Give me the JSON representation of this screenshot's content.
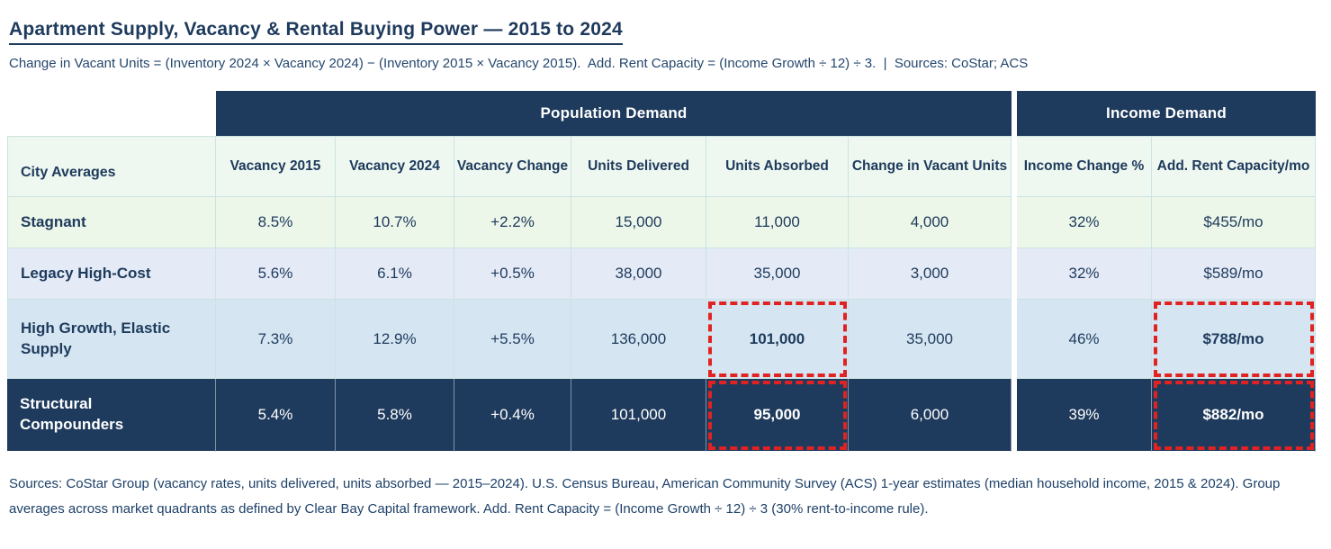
{
  "title": "Apartment Supply, Vacancy & Rental Buying Power — 2015 to 2024",
  "subtitle": "Change in Vacant Units = (Inventory 2024 × Vacancy 2024) − (Inventory 2015 × Vacancy 2015).  Add. Rent Capacity = (Income Growth ÷ 12) ÷ 3.  |  Sources: CoStar; ACS",
  "footer": "Sources: CoStar Group (vacancy rates, units delivered, units absorbed — 2015–2024). U.S. Census Bureau, American Community Survey (ACS) 1-year estimates (median household income, 2015 & 2024). Group averages across market quadrants as defined by Clear Bay Capital framework. Add. Rent Capacity = (Income Growth ÷ 12) ÷ 3 (30% rent-to-income rule).",
  "colors": {
    "navy": "#1e3a5c",
    "textnavy": "#1f3f66",
    "border": "#cbe4e2",
    "subhead": "#eef7f0",
    "row1": "#ecf6e9",
    "row2": "#e4eaf6",
    "row3": "#d5e6f2",
    "red": "#e02222"
  },
  "chart_data": {
    "type": "table",
    "title": "Apartment Supply, Vacancy & Rental Buying Power — 2015 to 2024",
    "corner_label": "City Averages",
    "column_groups": [
      {
        "label": "Population Demand",
        "span": 6
      },
      {
        "label": "Income Demand",
        "span": 2
      }
    ],
    "columns": [
      "Vacancy 2015",
      "Vacancy 2024",
      "Vacancy Change",
      "Units Delivered",
      "Units Absorbed",
      "Change in Vacant Units",
      "Income Change %",
      "Add. Rent Capacity/mo"
    ],
    "rows": [
      {
        "label": "Stagnant",
        "values": [
          "8.5%",
          "10.7%",
          "+2.2%",
          "15,000",
          "11,000",
          "4,000",
          "32%",
          "$455/mo"
        ]
      },
      {
        "label": "Legacy High-Cost",
        "values": [
          "5.6%",
          "6.1%",
          "+0.5%",
          "38,000",
          "35,000",
          "3,000",
          "32%",
          "$589/mo"
        ]
      },
      {
        "label": "High Growth, Elastic Supply",
        "values": [
          "7.3%",
          "12.9%",
          "+5.5%",
          "136,000",
          "101,000",
          "35,000",
          "46%",
          "$788/mo"
        ]
      },
      {
        "label": "Structural Compounders",
        "values": [
          "5.4%",
          "5.8%",
          "+0.4%",
          "101,000",
          "95,000",
          "6,000",
          "39%",
          "$882/mo"
        ]
      }
    ],
    "highlighted_cells_row_col": [
      [
        2,
        4
      ],
      [
        2,
        7
      ],
      [
        3,
        4
      ],
      [
        3,
        7
      ]
    ],
    "highlight_style": "red dashed box, bold value"
  }
}
